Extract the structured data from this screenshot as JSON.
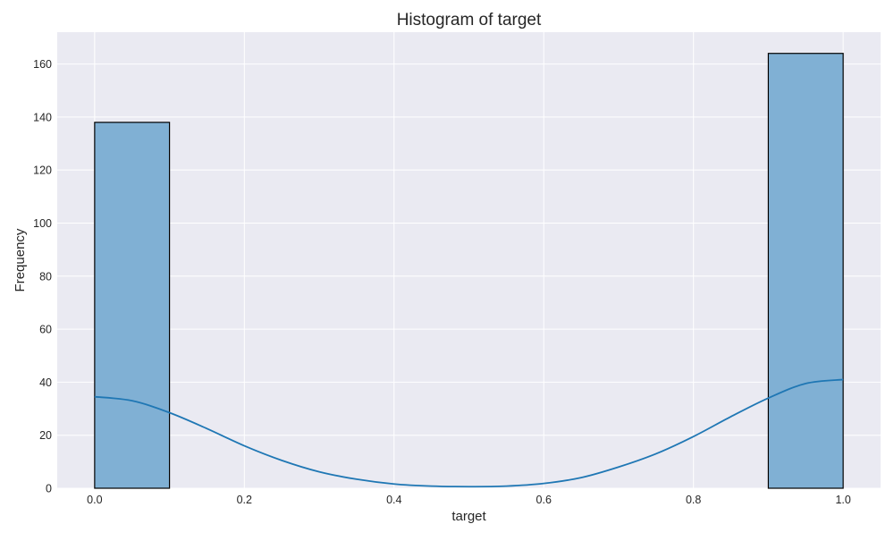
{
  "chart_data": {
    "type": "bar",
    "title": "Histogram of target",
    "xlabel": "target",
    "ylabel": "Frequency",
    "xlim": [
      -0.05,
      1.05
    ],
    "ylim": [
      0,
      172
    ],
    "xticks": [
      "0.0",
      "0.2",
      "0.4",
      "0.6",
      "0.8",
      "1.0"
    ],
    "yticks": [
      "0",
      "20",
      "40",
      "60",
      "80",
      "100",
      "120",
      "140",
      "160"
    ],
    "grid": true,
    "bins": [
      {
        "x0": 0.0,
        "x1": 0.1,
        "count": 138
      },
      {
        "x0": 0.1,
        "x1": 0.2,
        "count": 0
      },
      {
        "x0": 0.2,
        "x1": 0.3,
        "count": 0
      },
      {
        "x0": 0.3,
        "x1": 0.4,
        "count": 0
      },
      {
        "x0": 0.4,
        "x1": 0.5,
        "count": 0
      },
      {
        "x0": 0.5,
        "x1": 0.6,
        "count": 0
      },
      {
        "x0": 0.6,
        "x1": 0.7,
        "count": 0
      },
      {
        "x0": 0.7,
        "x1": 0.8,
        "count": 0
      },
      {
        "x0": 0.8,
        "x1": 0.9,
        "count": 0
      },
      {
        "x0": 0.9,
        "x1": 1.0,
        "count": 164
      }
    ],
    "kde": {
      "x": [
        0.0,
        0.05,
        0.1,
        0.15,
        0.2,
        0.25,
        0.3,
        0.35,
        0.4,
        0.45,
        0.5,
        0.55,
        0.6,
        0.65,
        0.7,
        0.75,
        0.8,
        0.85,
        0.9,
        0.95,
        1.0
      ],
      "y": [
        34.5,
        33,
        28.5,
        22.5,
        16,
        10.5,
        6.2,
        3.4,
        1.6,
        0.8,
        0.6,
        0.8,
        1.8,
        4,
        8,
        13,
        19.5,
        27,
        34,
        39.5,
        41
      ]
    },
    "colors": {
      "bar_fill": "#80b0d4",
      "bar_edge": "#000000",
      "kde_line": "#1f77b4",
      "plot_background": "#eaeaf2",
      "grid": "#ffffff"
    }
  }
}
